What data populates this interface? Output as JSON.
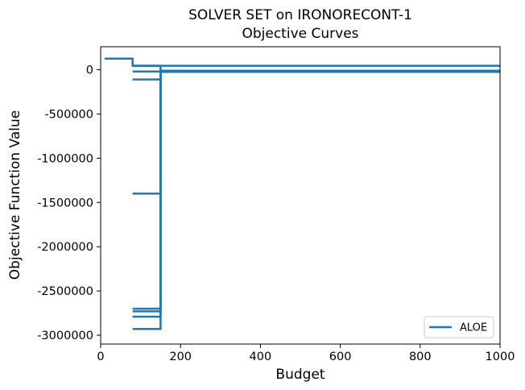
{
  "chart_data": {
    "type": "line",
    "title": "SOLVER SET on IRONORECONT-1",
    "subtitle": "Objective Curves",
    "xlabel": "Budget",
    "ylabel": "Objective Function Value",
    "xlim": [
      0,
      1000
    ],
    "ylim": [
      -3100000,
      260000
    ],
    "xticks": [
      0,
      200,
      400,
      600,
      800,
      1000
    ],
    "xtick_labels": [
      "0",
      "200",
      "400",
      "600",
      "800",
      "1000"
    ],
    "yticks": [
      0,
      -500000,
      -1000000,
      -1500000,
      -2000000,
      -2500000,
      -3000000
    ],
    "ytick_labels": [
      "0",
      "-500000",
      "-1000000",
      "-1500000",
      "-2000000",
      "-2500000",
      "-3000000"
    ],
    "grid": false,
    "legend_position": "lower right",
    "color": "#1f77b4",
    "series": [
      {
        "name": "ALOE",
        "x": [
          10,
          80,
          80,
          1000
        ],
        "y": [
          125000,
          125000,
          45000,
          45000
        ]
      },
      {
        "x": [
          80,
          150,
          150,
          1000
        ],
        "y": [
          45000,
          45000,
          -20000,
          -20000
        ]
      },
      {
        "x": [
          80,
          150,
          150,
          1000
        ],
        "y": [
          -20000,
          -20000,
          -10000,
          -10000
        ]
      },
      {
        "x": [
          80,
          150,
          150,
          1000
        ],
        "y": [
          -110000,
          -110000,
          -15000,
          -15000
        ]
      },
      {
        "x": [
          80,
          150,
          150,
          1000
        ],
        "y": [
          -1400000,
          -1400000,
          -25000,
          -25000
        ]
      },
      {
        "x": [
          80,
          150,
          150,
          1000
        ],
        "y": [
          -2700000,
          -2700000,
          -12000,
          -12000
        ]
      },
      {
        "x": [
          80,
          150,
          150,
          1000
        ],
        "y": [
          -2730000,
          -2730000,
          -18000,
          -18000
        ]
      },
      {
        "x": [
          80,
          150,
          150,
          1000
        ],
        "y": [
          -2790000,
          -2790000,
          -22000,
          -22000
        ]
      },
      {
        "x": [
          80,
          150,
          150,
          1000
        ],
        "y": [
          -2930000,
          -2930000,
          -16000,
          -16000
        ]
      }
    ]
  }
}
